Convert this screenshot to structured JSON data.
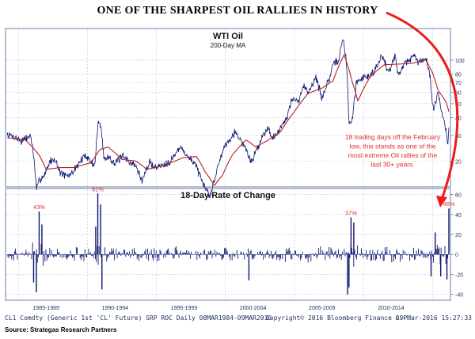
{
  "headline": "ONE OF THE SHARPEST OIL RALLIES IN HISTORY",
  "colors": {
    "price": "#0d1570",
    "ma": "#b52323",
    "roc": "#0d1570",
    "annotation": "#e03030",
    "arrow": "#ee1c1c",
    "grid": "#b7c4e0",
    "frame": "#6f7fa8",
    "axis_text": "#1c2e5c"
  },
  "annotation_text": [
    "18 trading days off the February",
    "low, this stands as one of the",
    "most extreme Oil rallies of the",
    "last 30+ years."
  ],
  "chart_data": [
    {
      "type": "line",
      "title": "WTI Oil",
      "subtitle": "200-Day MA",
      "scale": "log",
      "ylim": [
        15,
        150
      ],
      "yticks": [
        20,
        30,
        40,
        50,
        60,
        70,
        80,
        100
      ],
      "x_range": [
        1984.18,
        2016.19
      ],
      "grid": true,
      "series": [
        {
          "name": "WTI Oil",
          "x": [
            1984.2,
            1984.7,
            1985.2,
            1985.9,
            1986.2,
            1986.3,
            1986.55,
            1986.9,
            1987.3,
            1987.7,
            1987.95,
            1988.5,
            1988.9,
            1989.5,
            1989.9,
            1990.3,
            1990.55,
            1990.8,
            1991.0,
            1991.2,
            1991.6,
            1992.0,
            1992.5,
            1993.0,
            1993.5,
            1993.95,
            1994.5,
            1995.0,
            1995.5,
            1996.0,
            1996.8,
            1997.3,
            1997.8,
            1998.3,
            1998.9,
            1999.3,
            1999.9,
            2000.7,
            2001.2,
            2001.9,
            2002.5,
            2003.1,
            2003.3,
            2003.9,
            2004.5,
            2004.85,
            2005.3,
            2005.7,
            2006.0,
            2006.55,
            2007.0,
            2007.6,
            2007.9,
            2008.2,
            2008.52,
            2008.75,
            2008.95,
            2009.2,
            2009.5,
            2009.9,
            2010.5,
            2011.0,
            2011.3,
            2011.8,
            2012.3,
            2012.5,
            2013.0,
            2013.7,
            2014.0,
            2014.5,
            2014.8,
            2015.0,
            2015.1,
            2015.4,
            2015.7,
            2015.9,
            2016.12,
            2016.19
          ],
          "y": [
            30.5,
            29.5,
            27.5,
            30,
            17,
            12.5,
            15,
            16,
            20,
            20.5,
            17,
            15.5,
            16.5,
            20,
            22,
            19.5,
            19,
            38,
            33,
            20.5,
            21.5,
            19,
            21.5,
            20,
            18.5,
            14.5,
            19.5,
            18,
            19,
            20,
            25,
            21,
            19.5,
            14,
            11.5,
            16,
            25,
            32,
            27,
            19.5,
            27,
            35,
            29,
            32,
            42,
            54,
            51,
            67,
            60,
            76,
            54,
            78,
            96,
            100,
            140,
            100,
            36,
            38,
            70,
            76,
            78,
            91,
            110,
            82,
            106,
            80,
            95,
            108,
            95,
            106,
            80,
            50,
            45,
            61,
            42,
            35,
            26.5,
            36
          ]
        },
        {
          "name": "200-Day MA",
          "x": [
            1984.2,
            1985.5,
            1986.5,
            1987.0,
            1988.0,
            1989.0,
            1990.3,
            1990.9,
            1991.5,
            1992.5,
            1993.5,
            1994.3,
            1995.5,
            1996.9,
            1997.9,
            1998.5,
            1999.2,
            1999.8,
            2000.5,
            2001.5,
            2002.2,
            2003.0,
            2004.0,
            2005.0,
            2006.0,
            2007.0,
            2007.8,
            2008.6,
            2009.2,
            2009.6,
            2010.5,
            2011.5,
            2012.5,
            2013.5,
            2014.5,
            2015.0,
            2015.4,
            2016.0,
            2016.19
          ],
          "y": [
            29,
            28,
            22,
            17.5,
            18,
            18,
            19.5,
            24,
            25,
            20.5,
            20,
            17.5,
            18.5,
            21,
            21.5,
            17,
            13.5,
            16,
            22,
            28,
            25,
            27.5,
            32,
            44,
            59,
            64,
            72,
            109,
            70,
            52,
            77,
            93,
            94,
            95,
            101,
            82,
            62,
            51,
            44
          ]
        }
      ]
    },
    {
      "type": "bar",
      "title": "18-Day Rate of Change",
      "ylim": [
        -45,
        66
      ],
      "yticks": [
        -40,
        -20,
        0,
        20,
        40,
        60
      ],
      "grid": true,
      "xtick_labels": [
        "1985-1989",
        "1990-1994",
        "1995-1999",
        "2000-2004",
        "2005-2009",
        "2010-2014"
      ],
      "annotations": [
        {
          "x": 1986.5,
          "value": 43,
          "label": "43%"
        },
        {
          "x": 1990.75,
          "value": 61,
          "label": "61%"
        },
        {
          "x": 2009.1,
          "value": 37,
          "label": "37%"
        },
        {
          "x": 2016.19,
          "value": 46,
          "label": "46%"
        }
      ],
      "spikes": [
        {
          "x": 1986.5,
          "value": 43
        },
        {
          "x": 1986.3,
          "value": -38
        },
        {
          "x": 1986.7,
          "value": 30
        },
        {
          "x": 1986.1,
          "value": -28
        },
        {
          "x": 1990.75,
          "value": 61
        },
        {
          "x": 1990.95,
          "value": 50
        },
        {
          "x": 1991.05,
          "value": -35
        },
        {
          "x": 1990.6,
          "value": 28
        },
        {
          "x": 2001.7,
          "value": -26
        },
        {
          "x": 2008.85,
          "value": -40
        },
        {
          "x": 2009.1,
          "value": 37
        },
        {
          "x": 2009.3,
          "value": 32
        },
        {
          "x": 2008.95,
          "value": -33
        },
        {
          "x": 2014.9,
          "value": -22
        },
        {
          "x": 2015.2,
          "value": 22
        },
        {
          "x": 2015.6,
          "value": -22
        },
        {
          "x": 2016.05,
          "value": -25
        },
        {
          "x": 2016.19,
          "value": 46
        }
      ]
    }
  ],
  "footer": {
    "ticker": "CL1 Comdty (Generic 1st 'CL' Future) SRP ROC  Daily 08MAR1984-09MAR2016",
    "copyright": "Copyright© 2016 Bloomberg Finance L.P.",
    "timestamp": "09-Mar-2016 15:27:33"
  },
  "source": "Source: Strategas Research Partners"
}
